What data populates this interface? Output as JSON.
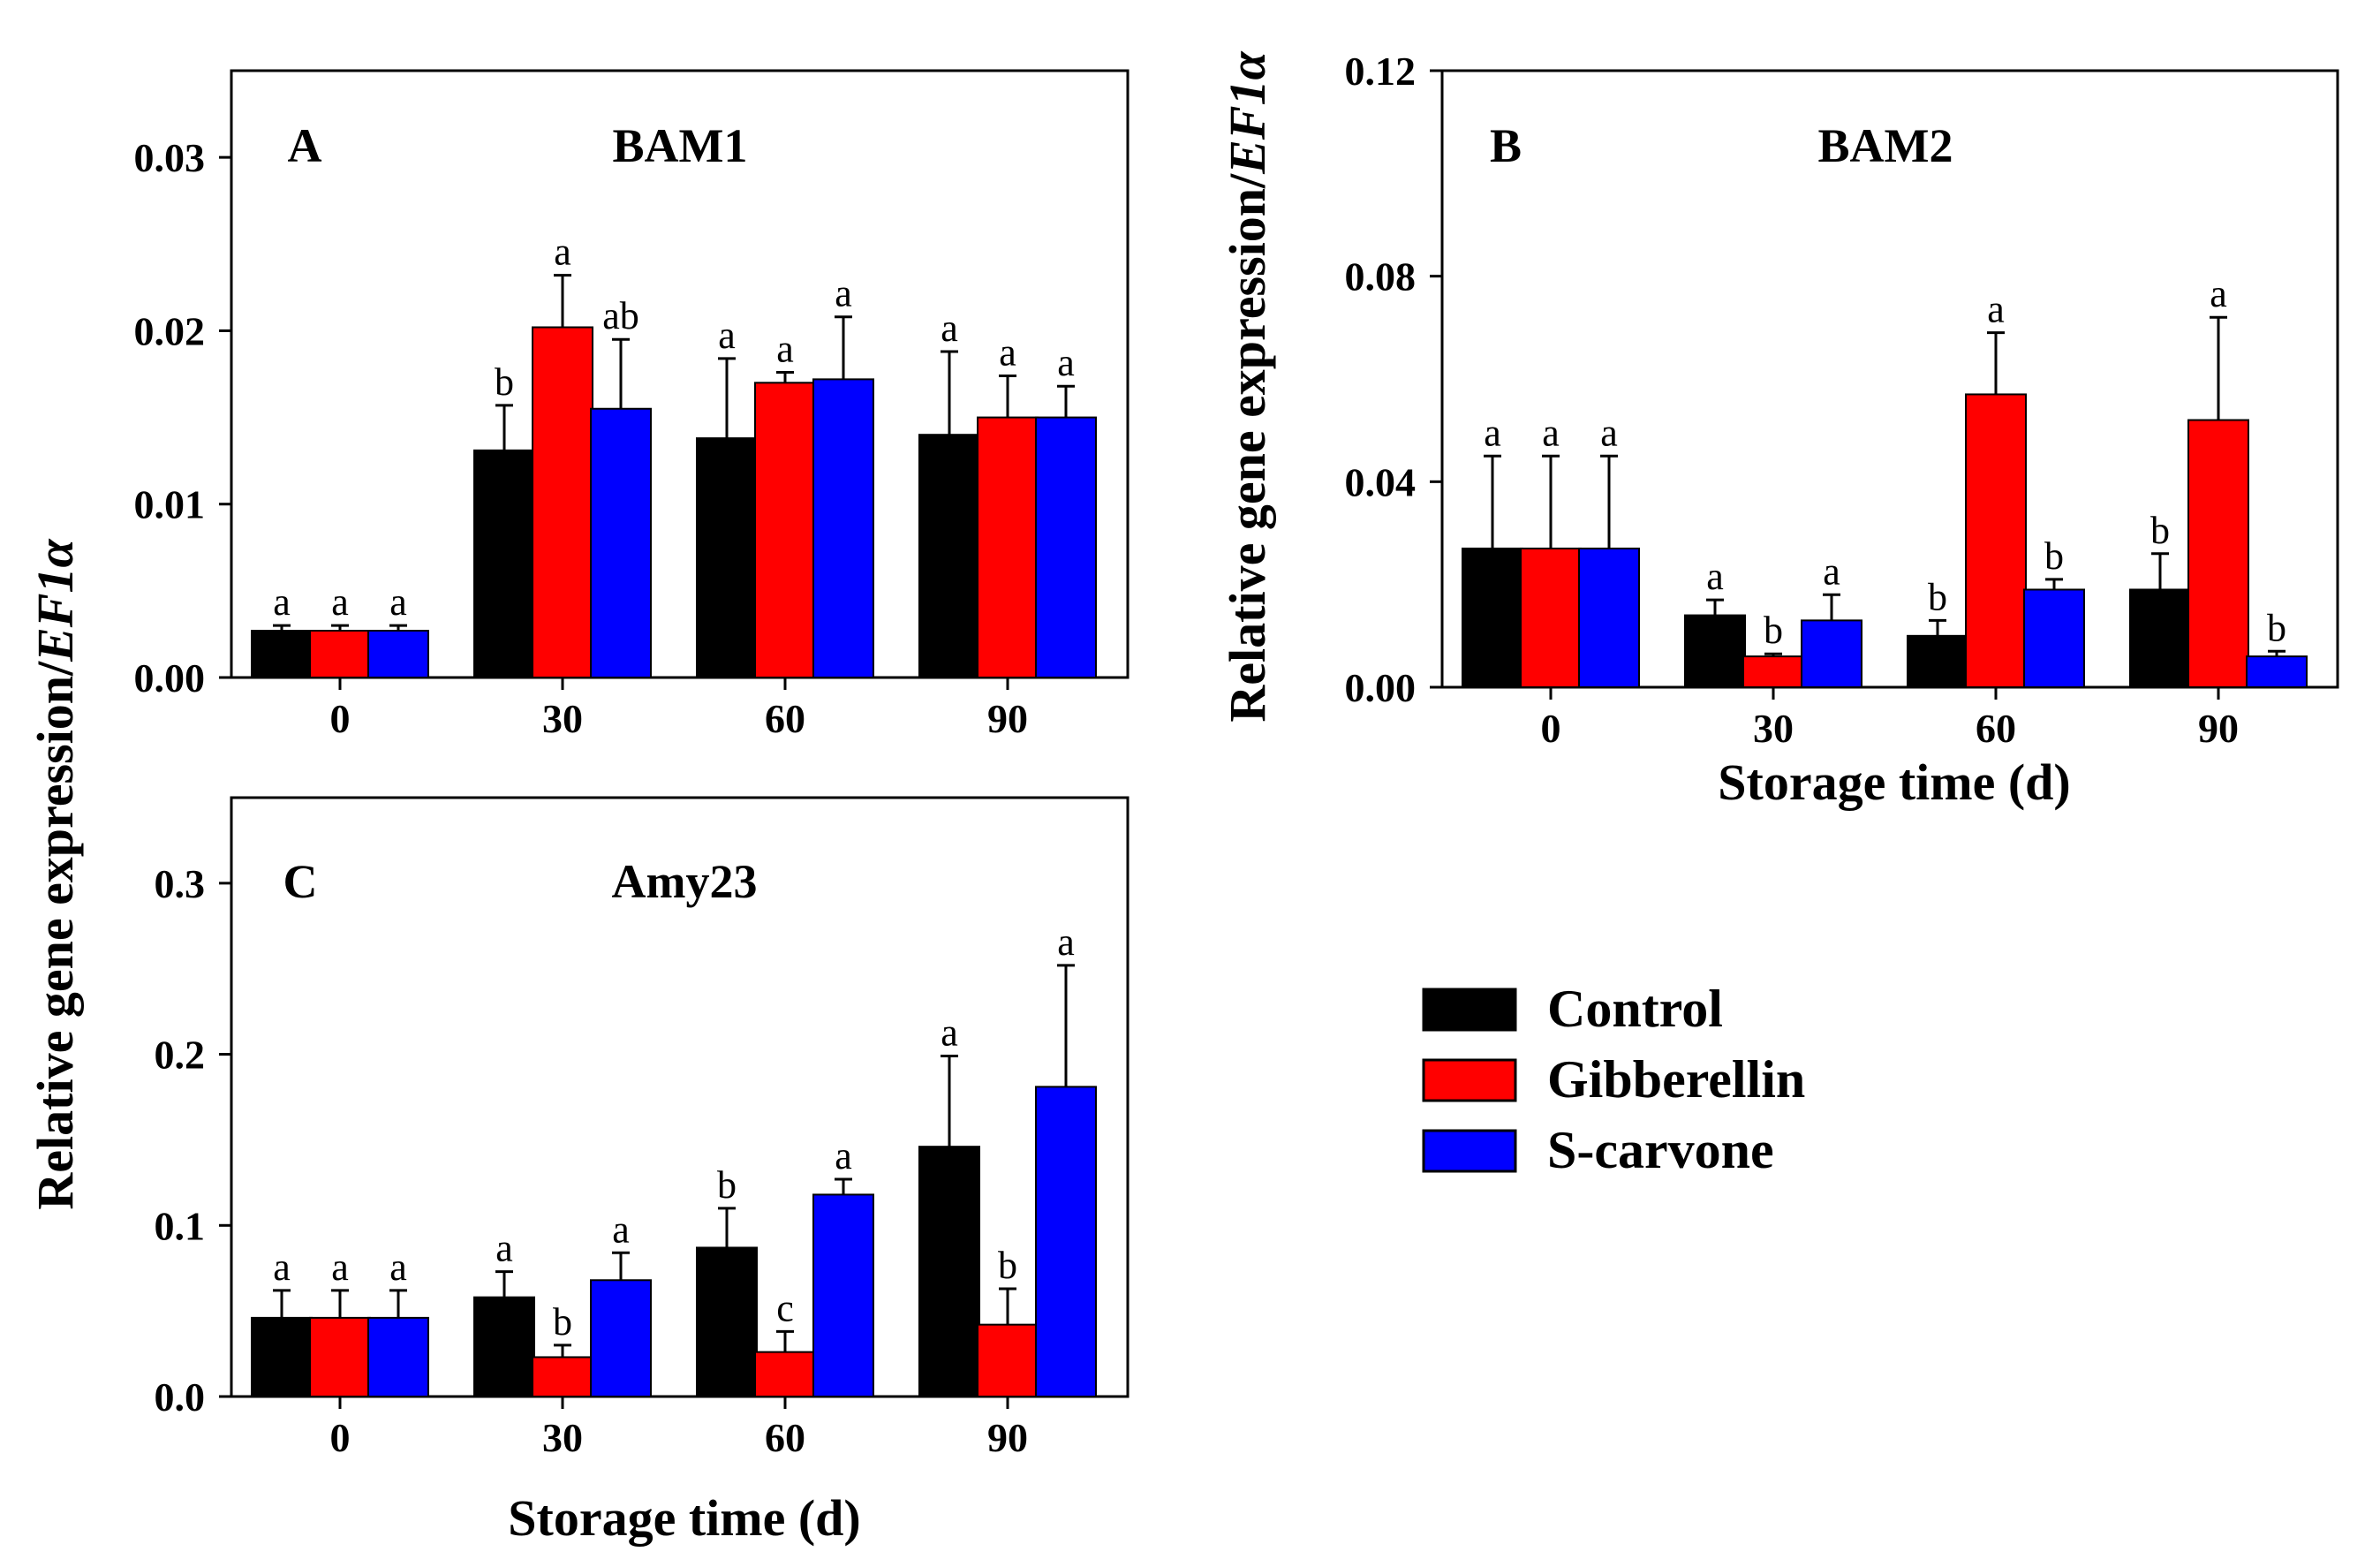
{
  "figure": {
    "y_label_prefix": "Relative gene expression/",
    "y_label_italic": "EF1α",
    "x_label": "Storage time (d)"
  },
  "legend": [
    {
      "label": "Control",
      "color": "#000000"
    },
    {
      "label": "Gibberellin",
      "color": "#ff0000"
    },
    {
      "label": "S-carvone",
      "color": "#0000ff"
    }
  ],
  "chart_data": [
    {
      "panel": "A",
      "title": "BAM1",
      "type": "bar",
      "categories": [
        "0",
        "30",
        "60",
        "90"
      ],
      "ylim": [
        0,
        0.035
      ],
      "yticks": [
        "0.00",
        "0.01",
        "0.02",
        "0.03"
      ],
      "xlabel": "",
      "ylabel": "Relative gene expression/EF1α",
      "series": [
        {
          "name": "Control",
          "values": [
            0.0027,
            0.0131,
            0.0138,
            0.014
          ],
          "errors": [
            0.0003,
            0.0026,
            0.0046,
            0.0048
          ],
          "letters": [
            "a",
            "b",
            "a",
            "a"
          ]
        },
        {
          "name": "Gibberellin",
          "values": [
            0.0027,
            0.0202,
            0.017,
            0.015
          ],
          "errors": [
            0.0003,
            0.003,
            0.0006,
            0.0024
          ],
          "letters": [
            "a",
            "a",
            "a",
            "a"
          ]
        },
        {
          "name": "S-carvone",
          "values": [
            0.0027,
            0.0155,
            0.0172,
            0.015
          ],
          "errors": [
            0.0003,
            0.004,
            0.0036,
            0.0018
          ],
          "letters": [
            "a",
            "ab",
            "a",
            "a"
          ]
        }
      ]
    },
    {
      "panel": "B",
      "title": "BAM2",
      "type": "bar",
      "categories": [
        "0",
        "30",
        "60",
        "90"
      ],
      "ylim": [
        0,
        0.12
      ],
      "yticks": [
        "0.00",
        "0.04",
        "0.08",
        "0.12"
      ],
      "xlabel": "Storage time (d)",
      "ylabel": "Relative gene expression/EF1α",
      "series": [
        {
          "name": "Control",
          "values": [
            0.027,
            0.014,
            0.01,
            0.019
          ],
          "errors": [
            0.018,
            0.003,
            0.003,
            0.007
          ],
          "letters": [
            "a",
            "a",
            "b",
            "b"
          ]
        },
        {
          "name": "Gibberellin",
          "values": [
            0.027,
            0.006,
            0.057,
            0.052
          ],
          "errors": [
            0.018,
            0.0005,
            0.012,
            0.02
          ],
          "letters": [
            "a",
            "b",
            "a",
            "a"
          ]
        },
        {
          "name": "S-carvone",
          "values": [
            0.027,
            0.013,
            0.019,
            0.006
          ],
          "errors": [
            0.018,
            0.005,
            0.002,
            0.001
          ],
          "letters": [
            "a",
            "a",
            "b",
            "b"
          ]
        }
      ]
    },
    {
      "panel": "C",
      "title": "Amy23",
      "type": "bar",
      "categories": [
        "0",
        "30",
        "60",
        "90"
      ],
      "ylim": [
        0,
        0.35
      ],
      "yticks": [
        "0.0",
        "0.1",
        "0.2",
        "0.3"
      ],
      "xlabel": "Storage time (d)",
      "ylabel": "Relative gene expression/EF1α",
      "series": [
        {
          "name": "Control",
          "values": [
            0.046,
            0.058,
            0.087,
            0.146
          ],
          "errors": [
            0.016,
            0.015,
            0.023,
            0.053
          ],
          "letters": [
            "a",
            "a",
            "b",
            "a"
          ]
        },
        {
          "name": "Gibberellin",
          "values": [
            0.046,
            0.023,
            0.026,
            0.042
          ],
          "errors": [
            0.016,
            0.007,
            0.012,
            0.021
          ],
          "letters": [
            "a",
            "b",
            "c",
            "b"
          ]
        },
        {
          "name": "S-carvone",
          "values": [
            0.046,
            0.068,
            0.118,
            0.181
          ],
          "errors": [
            0.016,
            0.016,
            0.009,
            0.071
          ],
          "letters": [
            "a",
            "a",
            "a",
            "a"
          ]
        }
      ]
    }
  ]
}
